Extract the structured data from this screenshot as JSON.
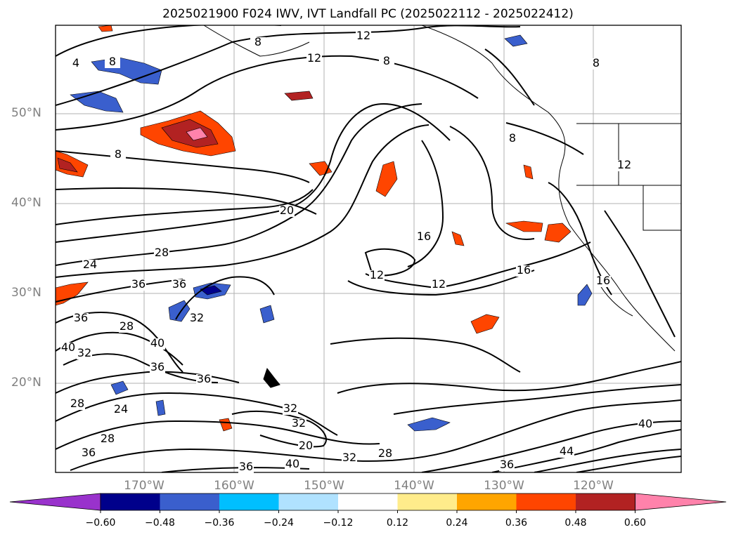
{
  "title": "2025021900 F024 IWV, IVT Landfall PC (2025022112 - 2025022412)",
  "map": {
    "lat_labels": [
      "50°N",
      "40°N",
      "30°N",
      "20°N"
    ],
    "lon_labels": [
      "170°W",
      "160°W",
      "150°W",
      "140°W",
      "130°W",
      "120°W"
    ],
    "contour_labels": [
      "12",
      "8",
      "12",
      "8",
      "8",
      "8",
      "4",
      "8",
      "20",
      "16",
      "28",
      "24",
      "36",
      "36",
      "12",
      "12",
      "16",
      "16",
      "36",
      "32",
      "28",
      "40",
      "32",
      "40",
      "36",
      "36",
      "28",
      "24",
      "32",
      "28",
      "32",
      "36",
      "20",
      "28",
      "32",
      "40",
      "36",
      "40",
      "36",
      "44",
      "8",
      "12"
    ]
  },
  "colorbar": {
    "ticks": [
      "−0.60",
      "−0.48",
      "−0.36",
      "−0.24",
      "−0.12",
      "0.12",
      "0.24",
      "0.36",
      "0.48",
      "0.60"
    ],
    "colors": [
      "#9932cc",
      "#00008b",
      "#3a5fcd",
      "#00bfff",
      "#b0e2ff",
      "#ffffff",
      "#ffec8b",
      "#ffa500",
      "#ff4500",
      "#b22222",
      "#ff82ab"
    ]
  }
}
